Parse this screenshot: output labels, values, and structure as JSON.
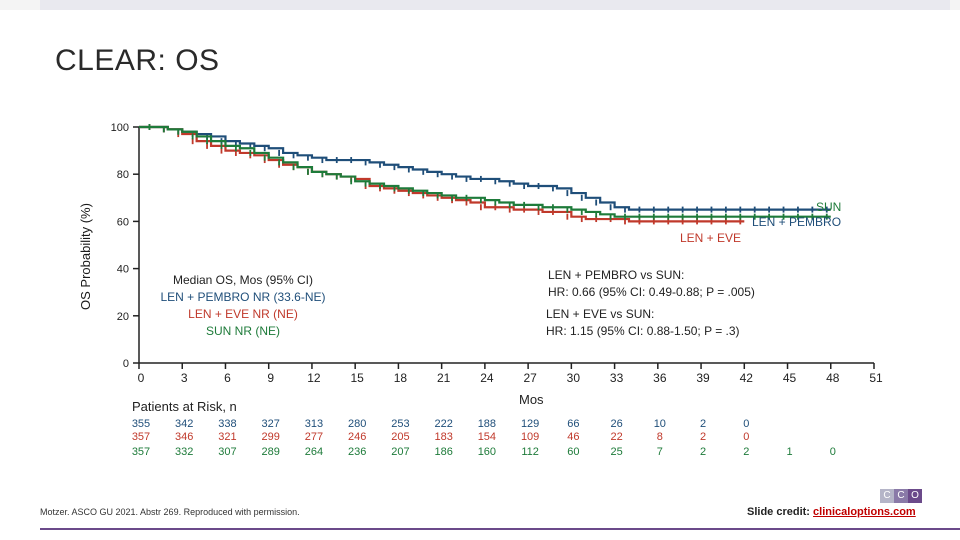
{
  "slide": {
    "title": "CLEAR: OS",
    "citation": "Motzer. ASCO GU 2021. Abstr 269. Reproduced with permission.",
    "credit_label": "Slide credit:",
    "credit_link": "clinicaloptions.com",
    "logo_letters": [
      "C",
      "C",
      "O"
    ],
    "colors": {
      "pembro": "#1f4e79",
      "eve": "#c0392b",
      "sun": "#1e7b3a",
      "accent": "#6b4a8a"
    }
  },
  "chart_data": {
    "type": "line",
    "title": "CLEAR: OS",
    "xlabel": "Mos",
    "ylabel": "OS Probability (%)",
    "xlim": [
      0,
      51
    ],
    "ylim": [
      0,
      100
    ],
    "x_ticks": [
      "0",
      "3",
      "6",
      "9",
      "12",
      "15",
      "18",
      "21",
      "24",
      "27",
      "30",
      "33",
      "36",
      "39",
      "42",
      "45",
      "48",
      "51"
    ],
    "x_tick_values": [
      0,
      3,
      6,
      9,
      12,
      15,
      18,
      21,
      24,
      27,
      30,
      33,
      36,
      39,
      42,
      45,
      48,
      51
    ],
    "y_ticks": [
      "0",
      "20",
      "40",
      "60",
      "80",
      "100"
    ],
    "y_tick_values": [
      0,
      20,
      40,
      60,
      80,
      100
    ],
    "series": [
      {
        "name": "LEN + PEMBRO",
        "color": "#1f4e79",
        "x": [
          0,
          1,
          2,
          3,
          4,
          5,
          6,
          7,
          8,
          9,
          10,
          11,
          12,
          13,
          14,
          15,
          16,
          17,
          18,
          19,
          20,
          21,
          22,
          23,
          24,
          25,
          26,
          27,
          28,
          29,
          30,
          31,
          32,
          33,
          34,
          35,
          36,
          37,
          38,
          39,
          40,
          41,
          42,
          43,
          44,
          45,
          46,
          47,
          48
        ],
        "y": [
          100,
          100,
          99,
          98,
          97,
          96,
          94,
          93,
          92,
          91,
          89,
          88,
          87,
          86,
          86,
          86,
          85,
          84,
          83,
          82,
          81,
          80,
          79,
          78,
          78,
          77,
          76,
          75,
          75,
          74,
          72,
          70,
          68,
          66,
          65,
          65,
          65,
          65,
          65,
          65,
          65,
          65,
          65,
          65,
          65,
          65,
          65,
          65,
          65
        ]
      },
      {
        "name": "LEN + EVE",
        "color": "#c0392b",
        "x": [
          0,
          1,
          2,
          3,
          4,
          5,
          6,
          7,
          8,
          9,
          10,
          11,
          12,
          13,
          14,
          15,
          16,
          17,
          18,
          19,
          20,
          21,
          22,
          23,
          24,
          25,
          26,
          27,
          28,
          29,
          30,
          31,
          32,
          33,
          34,
          35,
          36,
          37,
          38,
          39,
          40,
          41,
          42
        ],
        "y": [
          100,
          100,
          99,
          97,
          94,
          92,
          90,
          89,
          88,
          86,
          84,
          83,
          81,
          80,
          79,
          78,
          75,
          74,
          73,
          72,
          71,
          70,
          69,
          68,
          66,
          66,
          65,
          65,
          64,
          64,
          62,
          61,
          61,
          61,
          60,
          60,
          60,
          60,
          60,
          60,
          60,
          60,
          60
        ]
      },
      {
        "name": "SUN",
        "color": "#1e7b3a",
        "x": [
          0,
          1,
          2,
          3,
          4,
          5,
          6,
          7,
          8,
          9,
          10,
          11,
          12,
          13,
          14,
          15,
          16,
          17,
          18,
          19,
          20,
          21,
          22,
          23,
          24,
          25,
          26,
          27,
          28,
          29,
          30,
          31,
          32,
          33,
          34,
          35,
          36,
          37,
          38,
          39,
          40,
          41,
          42,
          43,
          44,
          45,
          46,
          47,
          48
        ],
        "y": [
          100,
          100,
          99,
          98,
          96,
          94,
          92,
          91,
          89,
          87,
          85,
          83,
          81,
          80,
          79,
          77,
          76,
          75,
          74,
          73,
          72,
          71,
          70,
          70,
          69,
          68,
          67,
          67,
          66,
          66,
          65,
          64,
          63,
          62,
          62,
          62,
          62,
          62,
          62,
          62,
          62,
          62,
          62,
          62,
          62,
          62,
          62,
          62,
          62
        ]
      }
    ],
    "series_labels": {
      "sun": "SUN",
      "pembro": "LEN + PEMBRO",
      "eve": "LEN + EVE"
    },
    "median_os": {
      "title": "Median OS, Mos (95% CI)",
      "pembro": "LEN + PEMBRO NR (33.6-NE)",
      "eve": "LEN + EVE NR (NE)",
      "sun": "SUN NR (NE)"
    },
    "hazard_ratios": {
      "hr1_title": "LEN + PEMBRO vs SUN:",
      "hr1_value": "HR: 0.66 (95% CI: 0.49-0.88; P = .005)",
      "hr2_title": "LEN + EVE vs SUN:",
      "hr2_value": "HR: 1.15 (95% CI: 0.88-1.50; P = .3)"
    },
    "risk_table": {
      "title": "Patients at Risk, n",
      "time_points": [
        0,
        3,
        6,
        9,
        12,
        15,
        18,
        21,
        24,
        27,
        30,
        33,
        36,
        39,
        42,
        45,
        48
      ],
      "pembro": [
        "355",
        "342",
        "338",
        "327",
        "313",
        "280",
        "253",
        "222",
        "188",
        "129",
        "66",
        "26",
        "10",
        "2",
        "0",
        "",
        ""
      ],
      "eve": [
        "357",
        "346",
        "321",
        "299",
        "277",
        "246",
        "205",
        "183",
        "154",
        "109",
        "46",
        "22",
        "8",
        "2",
        "0",
        "",
        ""
      ],
      "sun": [
        "357",
        "332",
        "307",
        "289",
        "264",
        "236",
        "207",
        "186",
        "160",
        "112",
        "60",
        "25",
        "7",
        "2",
        "2",
        "1",
        "0"
      ]
    }
  }
}
